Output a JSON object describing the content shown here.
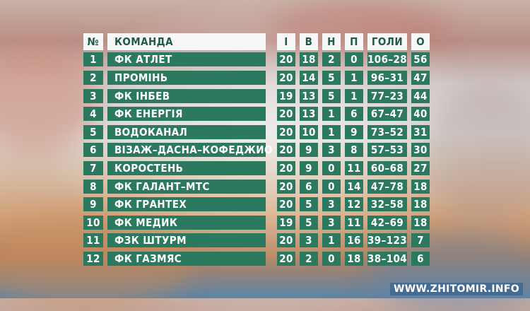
{
  "table": {
    "headers": {
      "pos": "№",
      "team": "КОМАНДА",
      "played": "І",
      "wins": "В",
      "draws": "Н",
      "losses": "П",
      "goals": "ГОЛИ",
      "points": "О"
    },
    "rows": [
      {
        "pos": "1",
        "team": "ФК АТЛЕТ",
        "played": "20",
        "wins": "18",
        "draws": "2",
        "losses": "0",
        "goals": "106–28",
        "points": "56"
      },
      {
        "pos": "2",
        "team": "ПРОМІНЬ",
        "played": "20",
        "wins": "14",
        "draws": "5",
        "losses": "1",
        "goals": "96–31",
        "points": "47"
      },
      {
        "pos": "3",
        "team": "ФК ІНБЕВ",
        "played": "19",
        "wins": "13",
        "draws": "5",
        "losses": "1",
        "goals": "77–23",
        "points": "44"
      },
      {
        "pos": "4",
        "team": "ФК ЕНЕРГІЯ",
        "played": "20",
        "wins": "13",
        "draws": "1",
        "losses": "6",
        "goals": "67–47",
        "points": "40"
      },
      {
        "pos": "5",
        "team": "ВОДОКАНАЛ",
        "played": "20",
        "wins": "10",
        "draws": "1",
        "losses": "9",
        "goals": "73–52",
        "points": "31"
      },
      {
        "pos": "6",
        "team": "ВІЗАЖ–ДАСНА–КОФЕДЖИО",
        "played": "20",
        "wins": "9",
        "draws": "3",
        "losses": "8",
        "goals": "57–53",
        "points": "30"
      },
      {
        "pos": "7",
        "team": "КОРОСТЕНЬ",
        "played": "20",
        "wins": "9",
        "draws": "0",
        "losses": "11",
        "goals": "60–68",
        "points": "27"
      },
      {
        "pos": "8",
        "team": "ФК ГАЛАНТ–МТС",
        "played": "20",
        "wins": "6",
        "draws": "0",
        "losses": "14",
        "goals": "47–78",
        "points": "18"
      },
      {
        "pos": "9",
        "team": "ФК ГРАНТЕХ",
        "played": "20",
        "wins": "5",
        "draws": "3",
        "losses": "12",
        "goals": "32–58",
        "points": "18"
      },
      {
        "pos": "10",
        "team": "ФК МЕДИК",
        "played": "19",
        "wins": "5",
        "draws": "3",
        "losses": "11",
        "goals": "42–69",
        "points": "18"
      },
      {
        "pos": "11",
        "team": "ФЗК ШТУРМ",
        "played": "20",
        "wins": "3",
        "draws": "1",
        "losses": "16",
        "goals": "39–123",
        "points": "7"
      },
      {
        "pos": "12",
        "team": "ФК ГАЗМЯС",
        "played": "20",
        "wins": "2",
        "draws": "0",
        "losses": "18",
        "goals": "38–104",
        "points": "6"
      }
    ]
  },
  "watermark": "WWW.ZHITOMIR.INFO",
  "colors": {
    "cell_bg": "#2b7a60",
    "header_bg": "#f7f7f7",
    "header_text": "#1f5c48",
    "cell_text": "#ffffff"
  }
}
